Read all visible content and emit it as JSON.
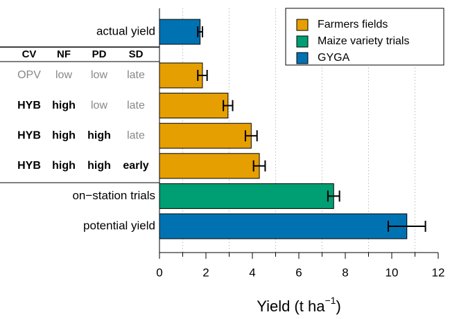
{
  "chart_data": {
    "type": "bar",
    "orientation": "horizontal",
    "categories": [
      "actual yield",
      null,
      null,
      null,
      null,
      "on−station trials",
      "potential yield"
    ],
    "factor_table": {
      "columns": [
        "CV",
        "NF",
        "PD",
        "SD"
      ],
      "rows": [
        [
          "OPV",
          "low",
          "low",
          "late"
        ],
        [
          "HYB",
          "high",
          "low",
          "late"
        ],
        [
          "HYB",
          "high",
          "high",
          "late"
        ],
        [
          "HYB",
          "high",
          "high",
          "early"
        ]
      ],
      "bold": [
        [
          false,
          false,
          false,
          false
        ],
        [
          true,
          true,
          false,
          false
        ],
        [
          true,
          true,
          true,
          false
        ],
        [
          true,
          true,
          true,
          true
        ]
      ],
      "row_index": [
        1,
        2,
        3,
        4
      ]
    },
    "series": [
      {
        "name": "Farmers fields",
        "color": "#E69F00",
        "values": [
          null,
          1.85,
          2.95,
          3.95,
          4.3,
          null,
          null
        ],
        "errors": [
          null,
          0.2,
          0.2,
          0.25,
          0.25,
          null,
          null
        ]
      },
      {
        "name": "Maize variety trials",
        "color": "#009E73",
        "values": [
          null,
          null,
          null,
          null,
          null,
          7.5,
          null
        ],
        "errors": [
          null,
          null,
          null,
          null,
          null,
          0.25,
          null
        ]
      },
      {
        "name": "GYGA",
        "color": "#0072B2",
        "values": [
          1.75,
          null,
          null,
          null,
          null,
          null,
          10.65
        ],
        "errors": [
          0.1,
          null,
          null,
          null,
          null,
          null,
          0.8
        ]
      }
    ],
    "xlabel": {
      "text": "Yield (t ha",
      "sup": "−1",
      "close": ")"
    },
    "xlim": [
      0,
      12
    ],
    "xticks": [
      0,
      2,
      4,
      6,
      8,
      10,
      12
    ],
    "xminor": [
      1,
      3,
      5,
      7,
      9,
      11
    ],
    "grid": true,
    "legend": "top-right"
  }
}
